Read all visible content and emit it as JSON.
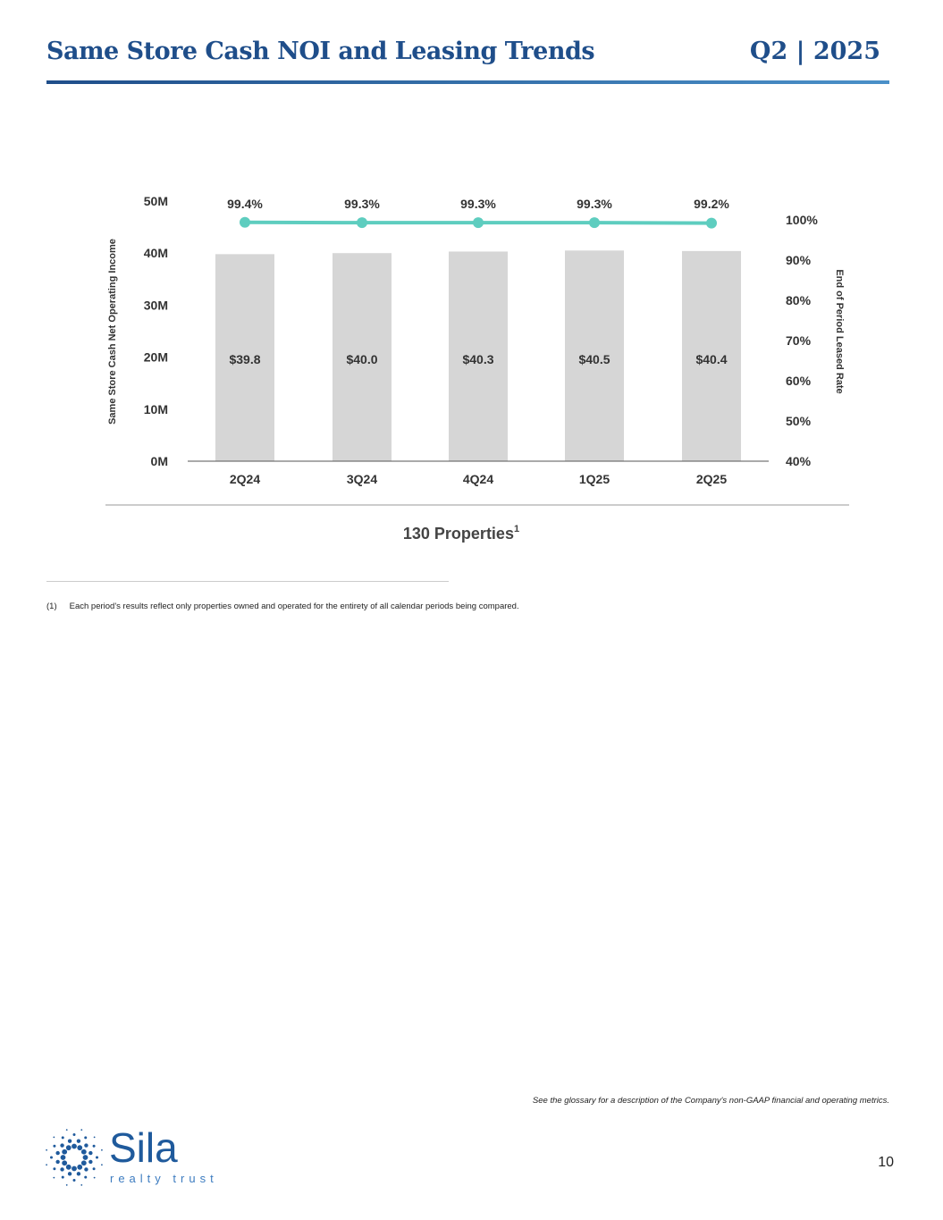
{
  "header": {
    "title": "Same Store Cash NOI and Leasing Trends",
    "period": "Q2 | 2025"
  },
  "chart_data": {
    "type": "bar+line",
    "categories": [
      "2Q24",
      "3Q24",
      "4Q24",
      "1Q25",
      "2Q25"
    ],
    "series": [
      {
        "name": "Same Store Cash Net Operating Income",
        "type": "bar",
        "axis": "left",
        "values": [
          39.8,
          40.0,
          40.3,
          40.5,
          40.4
        ],
        "labels": [
          "$39.8",
          "$40.0",
          "$40.3",
          "$40.5",
          "$40.4"
        ],
        "color": "#d6d6d6"
      },
      {
        "name": "End of Period Leased Rate",
        "type": "line",
        "axis": "right",
        "values": [
          99.4,
          99.3,
          99.3,
          99.3,
          99.2
        ],
        "labels": [
          "99.4%",
          "99.3%",
          "99.3%",
          "99.3%",
          "99.2%"
        ],
        "color": "#5ecdbf"
      }
    ],
    "ylabel": "Same Store Cash Net Operating Income",
    "y2label": "End of Period Leased Rate",
    "ylim": [
      0,
      50
    ],
    "y2lim": [
      40,
      100
    ],
    "yticks": [
      "0M",
      "10M",
      "20M",
      "30M",
      "40M",
      "50M"
    ],
    "y2ticks": [
      "40%",
      "50%",
      "60%",
      "70%",
      "80%",
      "90%",
      "100%"
    ],
    "xlabel": "130 Properties",
    "xlabel_sup": "1"
  },
  "footnote": {
    "marker": "(1)",
    "text": "Each period's results reflect only properties owned and operated for the entirety of all calendar periods being compared."
  },
  "glossary": "See the glossary for a description of the Company's non-GAAP financial and operating metrics.",
  "page_number": "10",
  "logo": {
    "name": "Sila",
    "tagline": "realty trust"
  }
}
